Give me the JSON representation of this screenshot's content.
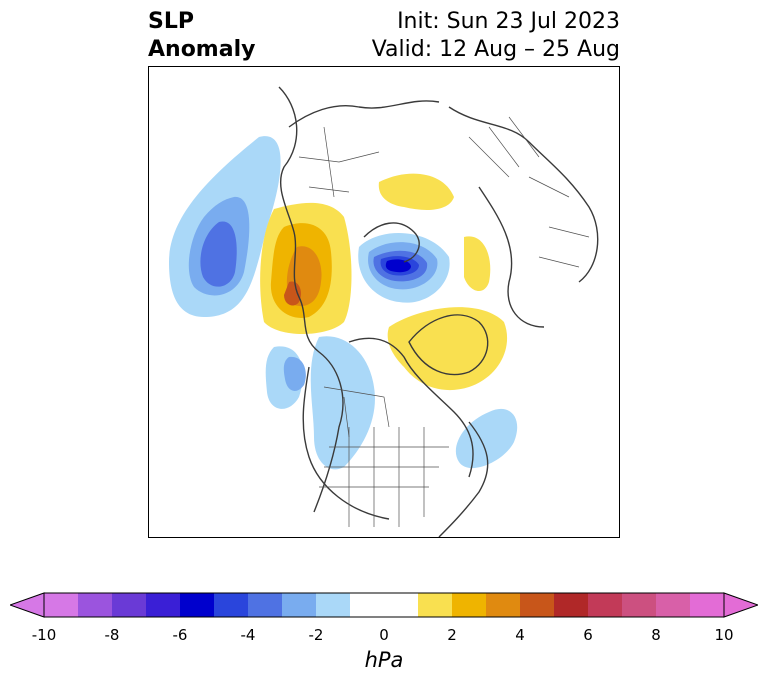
{
  "title": {
    "left_line1": "SLP",
    "left_line2": "Anomaly",
    "right_line1": "Init: Sun 23 Jul 2023",
    "right_line2": "Valid: 12 Aug – 25 Aug"
  },
  "colorbar": {
    "units": "hPa",
    "ticks": [
      "-10",
      "-8",
      "-6",
      "-4",
      "-2",
      "0",
      "2",
      "4",
      "6",
      "8",
      "10"
    ],
    "colors": [
      "#d678e6",
      "#9b54de",
      "#6a3ad6",
      "#3a1fd6",
      "#0000cd",
      "#2a45dc",
      "#4f72e3",
      "#79acef",
      "#aad8f8",
      "#ffffff",
      "#ffffff",
      "#f9e050",
      "#efb400",
      "#e08a10",
      "#c8561a",
      "#b02828",
      "#c23a58",
      "#cc5080",
      "#d860a8",
      "#e36cd6"
    ],
    "min_color": "#d678e6",
    "max_color": "#e36cd6"
  },
  "map_colors": {
    "coast": "#3a3a3a",
    "border": "#505050"
  }
}
